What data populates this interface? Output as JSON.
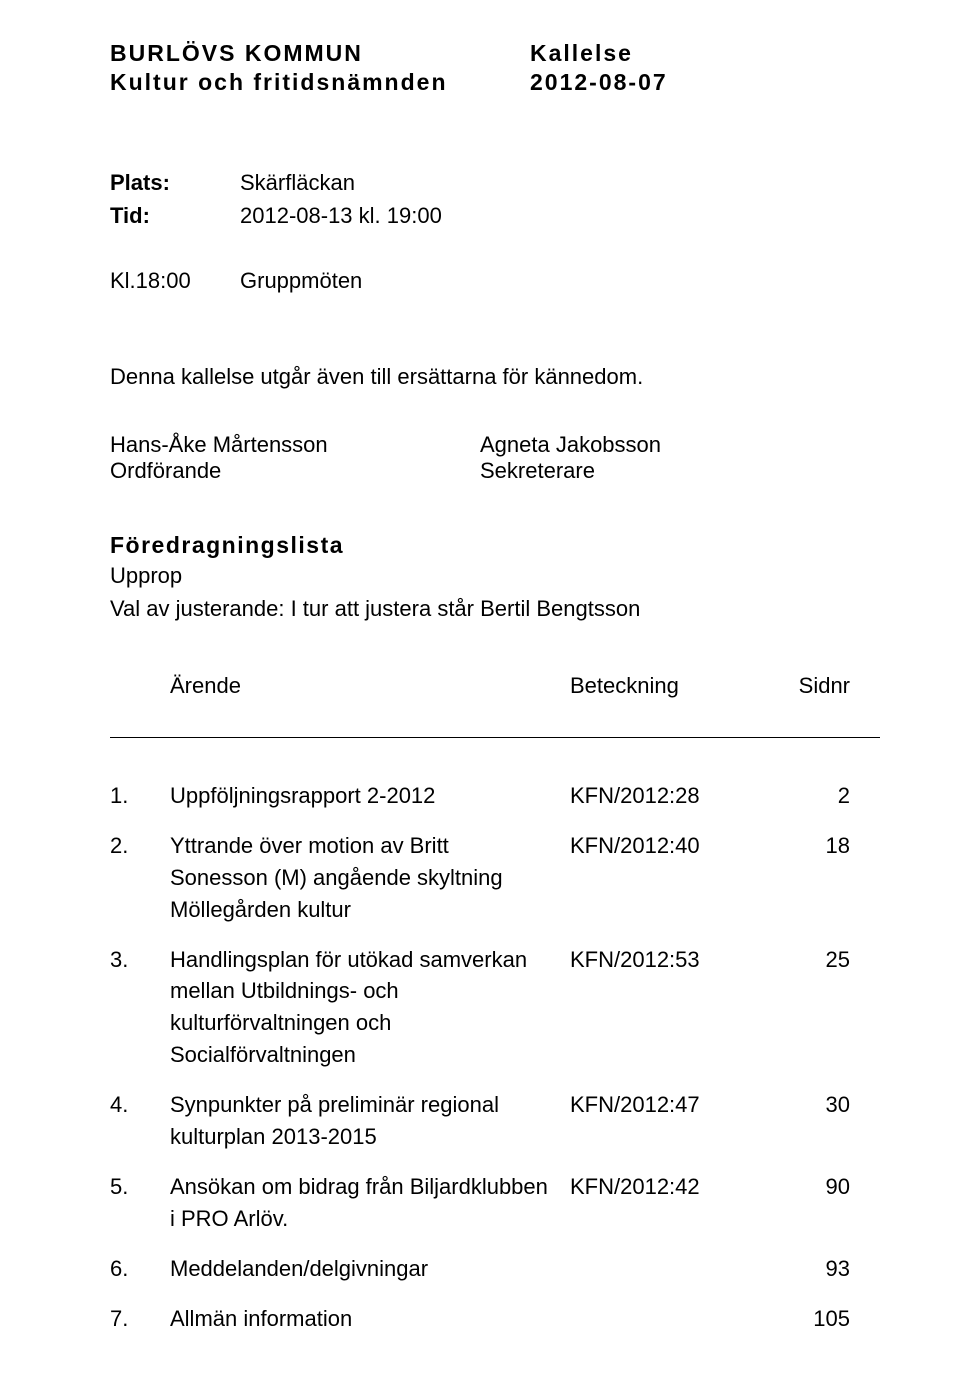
{
  "header": {
    "org_line1": "BURLÖVS KOMMUN",
    "org_line2": "Kultur och fritidsnämnden",
    "doc_type": "Kallelse",
    "date": "2012-08-07"
  },
  "meeting": {
    "place_label": "Plats:",
    "place_value": "Skärfläckan",
    "time_label": "Tid:",
    "time_value": "2012-08-13 kl. 19:00",
    "group_time": "Kl.18:00",
    "group_label": "Gruppmöten"
  },
  "note": "Denna kallelse utgår även till ersättarna för kännedom.",
  "signers": {
    "chair_name": "Hans-Åke Mårtensson",
    "chair_title": "Ordförande",
    "secretary_name": "Agneta Jakobsson",
    "secretary_title": "Sekreterare"
  },
  "agenda_section": {
    "title": "Föredragningslista",
    "roll_call": "Upprop",
    "adjuster": "Val av justerande: I tur att justera står Bertil Bengtsson"
  },
  "table_head": {
    "subject": "Ärende",
    "reference": "Beteckning",
    "page": "Sidnr"
  },
  "items": [
    {
      "num": "1.",
      "subject": "Uppföljningsrapport 2-2012",
      "ref": "KFN/2012:28",
      "page": "2"
    },
    {
      "num": "2.",
      "subject": "Yttrande över motion av Britt Sonesson (M) angående skyltning Möllegården kultur",
      "ref": "KFN/2012:40",
      "page": "18"
    },
    {
      "num": "3.",
      "subject": "Handlingsplan för utökad samverkan mellan Utbildnings- och kulturförvaltningen och Socialförvaltningen",
      "ref": "KFN/2012:53",
      "page": "25"
    },
    {
      "num": "4.",
      "subject": "Synpunkter på preliminär regional kulturplan 2013-2015",
      "ref": "KFN/2012:47",
      "page": "30"
    },
    {
      "num": "5.",
      "subject": "Ansökan om bidrag från Biljardklubben i PRO Arlöv.",
      "ref": "KFN/2012:42",
      "page": "90"
    },
    {
      "num": "6.",
      "subject": "Meddelanden/delgivningar",
      "ref": "",
      "page": "93"
    },
    {
      "num": "7.",
      "subject": "Allmän information",
      "ref": "",
      "page": "105"
    }
  ]
}
